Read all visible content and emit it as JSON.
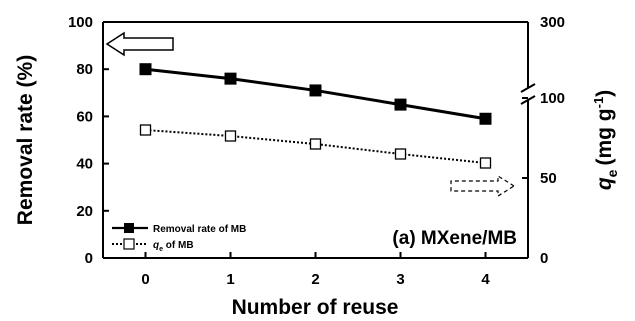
{
  "chart_data": {
    "type": "line",
    "title": "",
    "annotation": "(a) MXene/MB",
    "xlabel": "Number of reuse",
    "ylabel_left": "Removal rate (%)",
    "ylabel_right_symbol": "q",
    "ylabel_right_subscript": "e",
    "ylabel_right_unit_prefix": "(mg g",
    "ylabel_right_unit_sup": "-1",
    "ylabel_right_unit_suffix": ")",
    "x": [
      0,
      1,
      2,
      3,
      4
    ],
    "x_ticks": [
      "0",
      "1",
      "2",
      "3",
      "4"
    ],
    "xlim": [
      -0.5,
      4.5
    ],
    "ylim_left": [
      0,
      100
    ],
    "y_ticks_left": [
      "0",
      "20",
      "40",
      "60",
      "80",
      "100"
    ],
    "y_ticks_right": [
      "0",
      "50",
      "100",
      "300"
    ],
    "right_axis_break": true,
    "grid": false,
    "legend_position": "bottom-left",
    "series": [
      {
        "name": "Removal rate of MB",
        "axis": "left",
        "marker": "filled-square",
        "line_style": "solid",
        "color": "#000000",
        "values": [
          80,
          76,
          71,
          65,
          59
        ]
      },
      {
        "name_symbol": "q",
        "name_subscript": "e",
        "name_suffix": " of MB",
        "axis": "right",
        "marker": "open-square",
        "line_style": "dotted",
        "color": "#000000",
        "values": [
          80,
          76,
          71,
          65,
          59
        ]
      }
    ]
  }
}
